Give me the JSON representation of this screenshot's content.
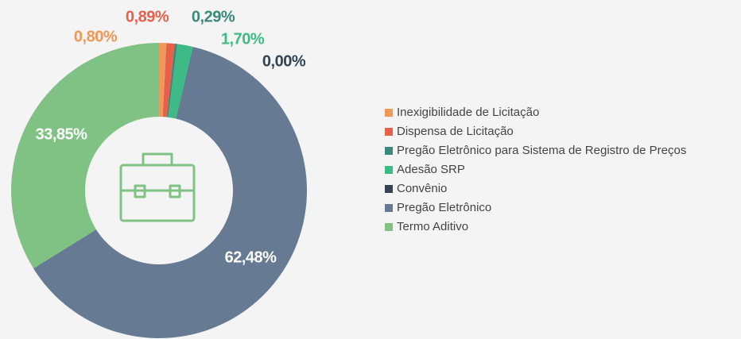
{
  "chart_data": {
    "type": "pie",
    "donut": true,
    "categories": [
      "Inexigibilidade de Licitação",
      "Dispensa de Licitação",
      "Pregão Eletrônico para Sistema de Registro de Preços",
      "Adesão SRP",
      "Convênio",
      "Pregão Eletrônico",
      "Termo Aditivo"
    ],
    "values": [
      0.8,
      0.89,
      0.29,
      1.7,
      0.0,
      62.48,
      33.85
    ],
    "value_labels": [
      "0,80%",
      "0,89%",
      "0,29%",
      "1,70%",
      "0,00%",
      "62,48%",
      "33,85%"
    ],
    "colors": [
      "#f0975a",
      "#e8604c",
      "#3a8a7a",
      "#3dba86",
      "#334455",
      "#667a93",
      "#7fc283"
    ]
  }
}
